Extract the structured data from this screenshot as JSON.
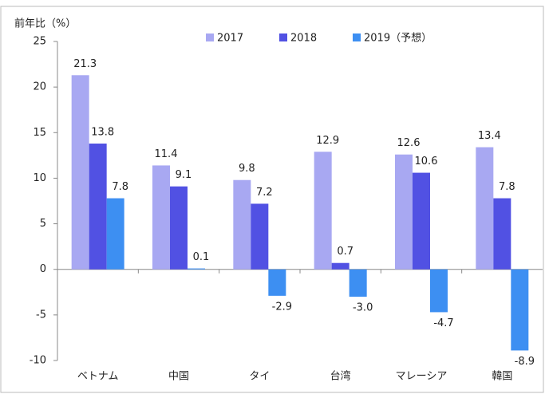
{
  "chart_data": {
    "type": "bar",
    "y_axis_label": "前年比（%）",
    "categories": [
      "ベトナム",
      "中国",
      "タイ",
      "台湾",
      "マレーシア",
      "韓国"
    ],
    "series": [
      {
        "name": "2017",
        "color": "#a8a8f2",
        "values": [
          21.3,
          11.4,
          9.8,
          12.9,
          12.6,
          13.4
        ],
        "value_labels": [
          "21.3",
          "11.4",
          "9.8",
          "12.9",
          "12.6",
          "13.4"
        ]
      },
      {
        "name": "2018",
        "color": "#5151e3",
        "values": [
          13.8,
          9.1,
          7.2,
          0.7,
          10.6,
          7.8
        ],
        "value_labels": [
          "13.8",
          "9.1",
          "7.2",
          "0.7",
          "10.6",
          "7.8"
        ]
      },
      {
        "name": "2019（予想）",
        "color": "#3d8ff2",
        "values": [
          7.8,
          0.1,
          -2.9,
          -3.0,
          -4.7,
          -8.9
        ],
        "value_labels": [
          "7.8",
          "0.1",
          "-2.9",
          "-3.0",
          "-4.7",
          "-8.9"
        ]
      }
    ],
    "ylim": [
      -10,
      25
    ],
    "yticks": [
      -10,
      -5,
      0,
      5,
      10,
      15,
      20,
      25
    ],
    "grid": false,
    "legend": "top"
  }
}
